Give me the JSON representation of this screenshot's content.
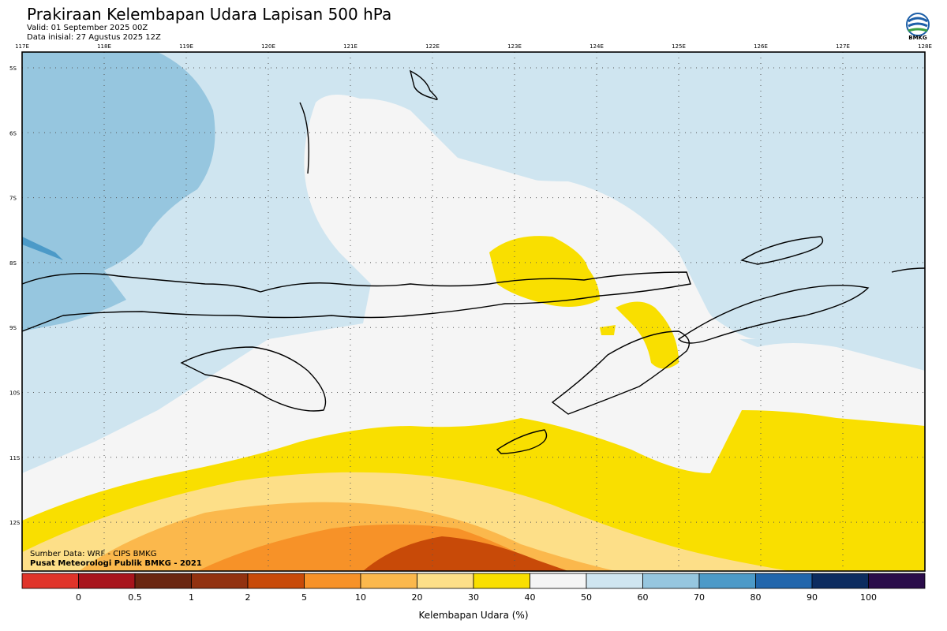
{
  "header": {
    "title": "Prakiraan Kelembapan Udara Lapisan 500 hPa",
    "valid": "Valid: 01 September 2025 00Z",
    "initial": "Data inisial: 27 Agustus 2025 12Z"
  },
  "logo": {
    "text": "BMKG",
    "icon": "bmkg-logo-icon"
  },
  "map": {
    "lon_labels": [
      "117E",
      "118E",
      "119E",
      "120E",
      "121E",
      "122E",
      "123E",
      "124E",
      "125E",
      "126E",
      "127E",
      "128E"
    ],
    "lat_labels": [
      "5S",
      "6S",
      "7S",
      "8S",
      "9S",
      "10S",
      "11S",
      "12S"
    ],
    "lon_range": [
      117,
      128
    ],
    "lat_range": [
      -4.8,
      -12.8
    ],
    "grid": true
  },
  "footer": {
    "source": "Sumber Data: WRF - CIPS BMKG",
    "credit": "Pusat Meteorologi Publik BMKG - 2021"
  },
  "colorbar": {
    "labels": [
      "0",
      "0.5",
      "1",
      "2",
      "5",
      "10",
      "20",
      "30",
      "40",
      "50",
      "60",
      "70",
      "80",
      "90",
      "100"
    ],
    "colors": [
      "#e0342a",
      "#a8141c",
      "#6a2610",
      "#923210",
      "#c84a08",
      "#f79228",
      "#fbb84c",
      "#fddf88",
      "#f9df00",
      "#f5f5f5",
      "#cfe5f0",
      "#96c6df",
      "#4c9ac8",
      "#2166ac",
      "#0c2c60",
      "#2a0c4a"
    ],
    "title": "Kelembapan Udara (%)"
  }
}
